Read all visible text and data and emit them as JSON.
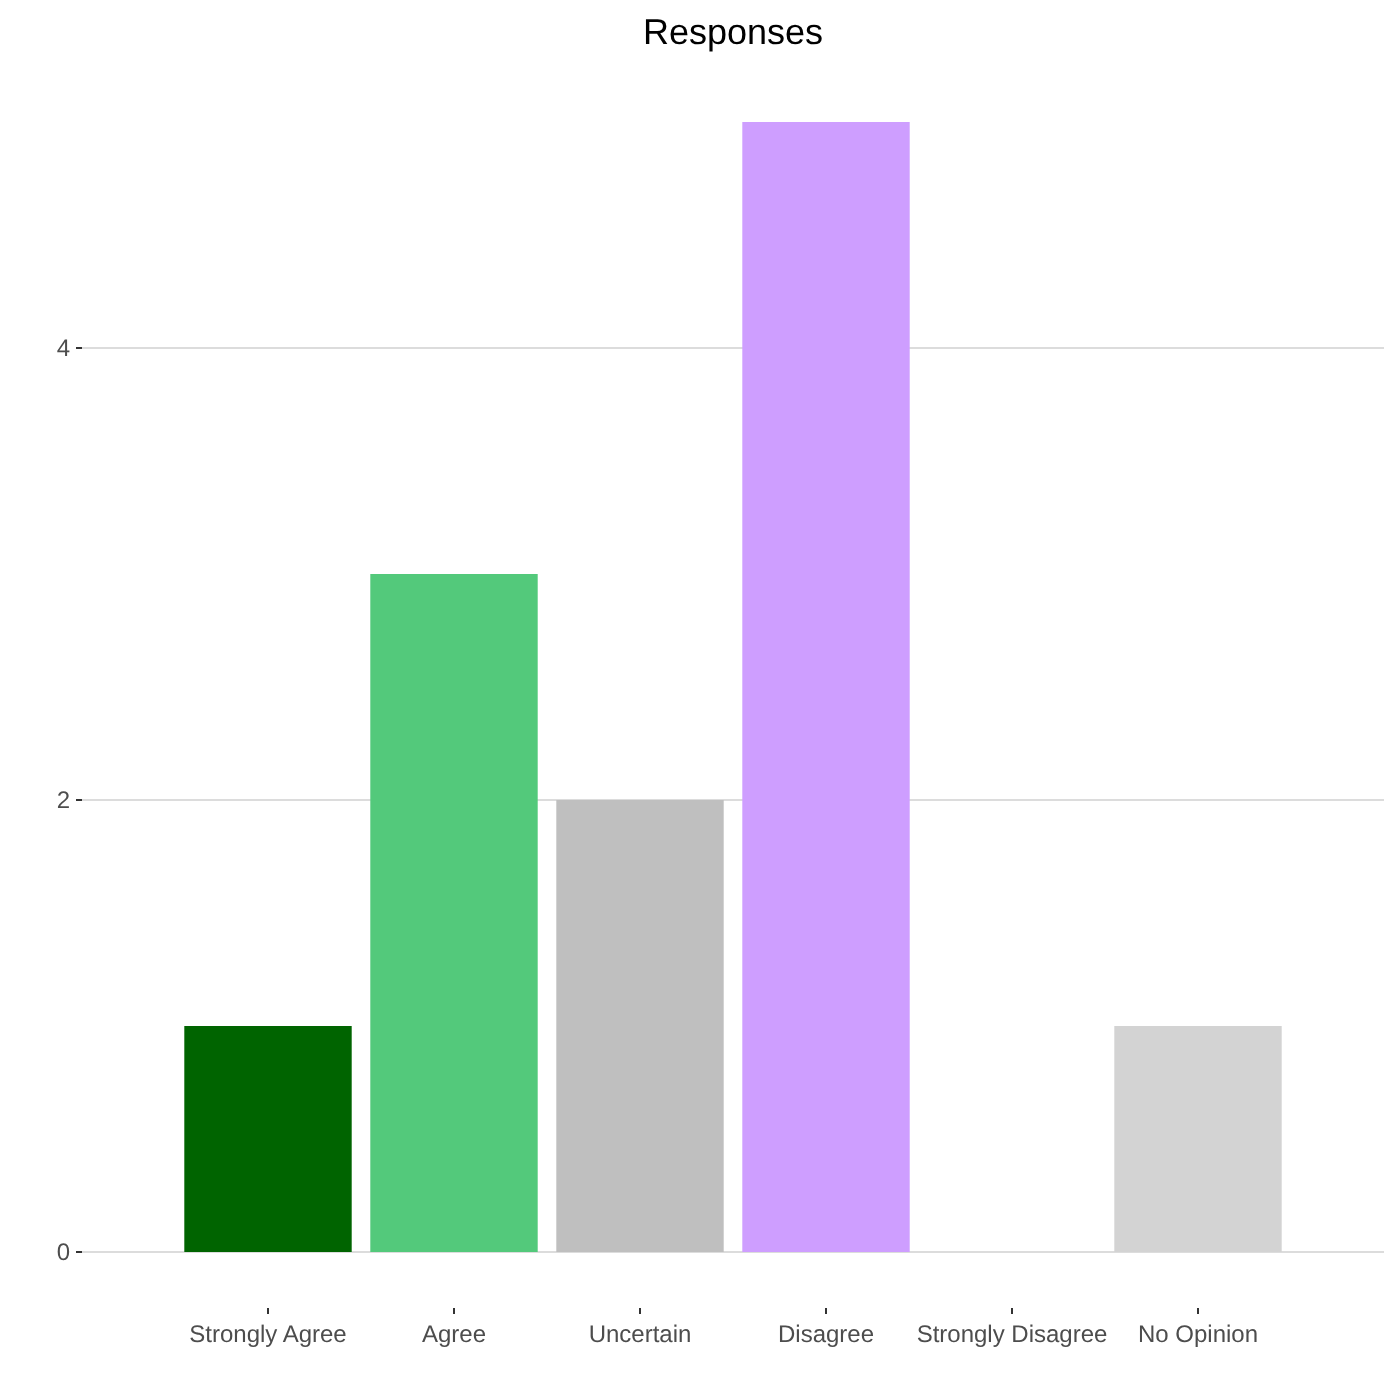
{
  "chart_data": {
    "type": "bar",
    "title": "Responses",
    "categories": [
      "Strongly Agree",
      "Agree",
      "Uncertain",
      "Disagree",
      "Strongly Disagree",
      "No Opinion"
    ],
    "values": [
      1,
      3,
      2,
      5,
      0,
      1
    ],
    "colors": [
      "#006400",
      "#53c97b",
      "#bfbfbf",
      "#ce9eff",
      null,
      "#d3d3d3"
    ],
    "ylim": [
      0,
      5
    ],
    "yticks": [
      0,
      2,
      4
    ],
    "grid": "y"
  }
}
